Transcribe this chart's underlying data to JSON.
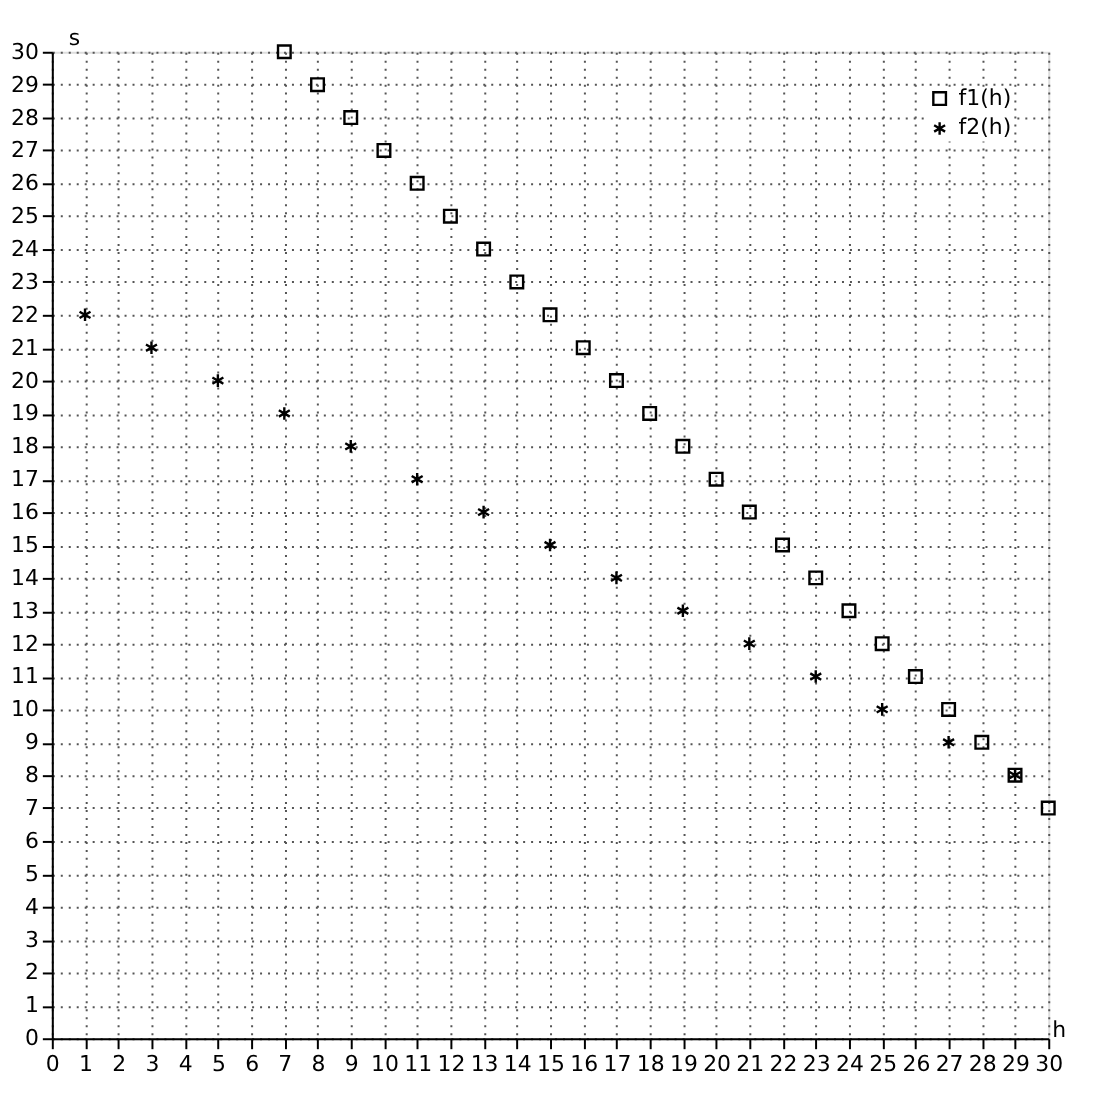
{
  "chart_data": {
    "type": "scatter",
    "xlabel": "h",
    "ylabel": "s",
    "xlim": [
      0,
      30
    ],
    "ylim": [
      0,
      30
    ],
    "xticks": [
      0,
      1,
      2,
      3,
      4,
      5,
      6,
      7,
      8,
      9,
      10,
      11,
      12,
      13,
      14,
      15,
      16,
      17,
      18,
      19,
      20,
      21,
      22,
      23,
      24,
      25,
      26,
      27,
      28,
      29,
      30
    ],
    "yticks": [
      0,
      1,
      2,
      3,
      4,
      5,
      6,
      7,
      8,
      9,
      10,
      11,
      12,
      13,
      14,
      15,
      16,
      17,
      18,
      19,
      20,
      21,
      22,
      23,
      24,
      25,
      26,
      27,
      28,
      29,
      30
    ],
    "grid": true,
    "legend": "top right",
    "series": [
      {
        "name": "f1(h)",
        "color": "#000000",
        "marker": "square",
        "x": [
          7,
          8,
          9,
          10,
          11,
          12,
          13,
          14,
          15,
          16,
          17,
          18,
          19,
          20,
          21,
          22,
          23,
          24,
          25,
          26,
          27,
          28,
          29,
          30
        ],
        "values": [
          30,
          29,
          28,
          27,
          26,
          25,
          24,
          23,
          22,
          21,
          20,
          19,
          18,
          17,
          16,
          15,
          14,
          13,
          12,
          11,
          10,
          9,
          8,
          7
        ]
      },
      {
        "name": "f2(h)",
        "color": "#000000",
        "marker": "cross",
        "x": [
          1,
          3,
          5,
          7,
          9,
          11,
          13,
          15,
          17,
          19,
          21,
          23,
          25,
          27,
          29
        ],
        "values": [
          22,
          21,
          20,
          19,
          18,
          17,
          16,
          15,
          14,
          13,
          12,
          11,
          10,
          9,
          8
        ]
      }
    ]
  }
}
